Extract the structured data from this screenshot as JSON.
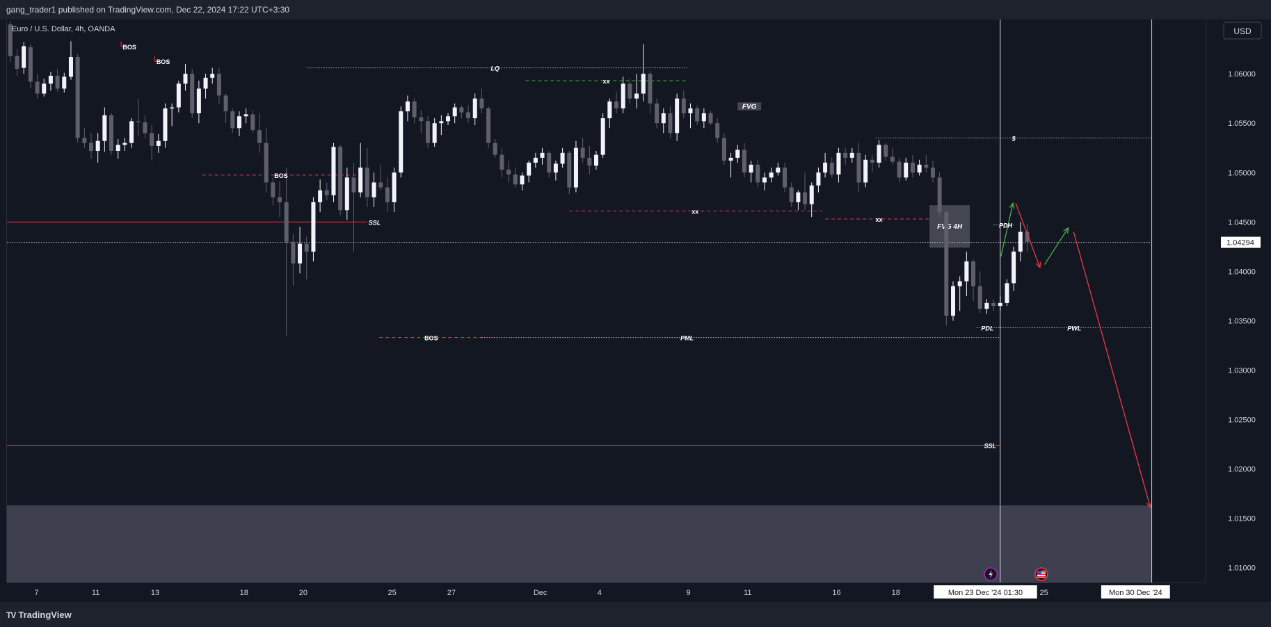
{
  "header": {
    "published_by": "gang_trader1 published on TradingView.com, Dec 22, 2024 17:22 UTC+3:30"
  },
  "footer": {
    "brand": "TradingView",
    "brand_mark": "TV"
  },
  "colors": {
    "background": "#131722",
    "panel": "#1e222d",
    "grid": "#1e2230",
    "candle_up": "#f0f3fa",
    "candle_down": "#5d606b",
    "bear_line": "#f23645",
    "bull_line": "#4caf50",
    "text": "#d1d4dc",
    "dotted": "#b2b5be",
    "zone": "#3e4050"
  },
  "chart_data": {
    "type": "candlestick",
    "symbol_title": "Euro / U.S. Dollar, 4h, OANDA",
    "currency": "USD",
    "last_price": "1.04294",
    "ylim": [
      1.0085,
      1.0655
    ],
    "xlim": [
      0,
      178
    ],
    "y_ticks": [
      "1.06000",
      "1.05500",
      "1.05000",
      "1.04500",
      "1.04000",
      "1.03500",
      "1.03000",
      "1.02500",
      "1.02000",
      "1.01500",
      "1.01000"
    ],
    "x_ticks": [
      {
        "label": "7",
        "x": 4.4
      },
      {
        "label": "11",
        "x": 13.2
      },
      {
        "label": "13",
        "x": 22.0
      },
      {
        "label": "18",
        "x": 35.2
      },
      {
        "label": "20",
        "x": 44.0
      },
      {
        "label": "25",
        "x": 57.2
      },
      {
        "label": "27",
        "x": 66.0
      },
      {
        "label": "Dec",
        "x": 79.2
      },
      {
        "label": "4",
        "x": 88.0
      },
      {
        "label": "9",
        "x": 101.2
      },
      {
        "label": "11",
        "x": 110.0
      },
      {
        "label": "16",
        "x": 123.2
      },
      {
        "label": "18",
        "x": 132.0
      },
      {
        "label": "25",
        "x": 154.0
      }
    ],
    "time_labels": [
      {
        "label": "Mon 23 Dec '24   01:30",
        "x": 145.3
      },
      {
        "label": "Mon 30 Dec '24",
        "x": 167.6
      }
    ],
    "candles": [
      [
        1.065,
        1.0653,
        1.0612,
        1.0618
      ],
      [
        1.0618,
        1.0625,
        1.0598,
        1.0605
      ],
      [
        1.0606,
        1.0632,
        1.06,
        1.0628
      ],
      [
        1.0627,
        1.063,
        1.0585,
        1.0592
      ],
      [
        1.0592,
        1.06,
        1.0575,
        1.058
      ],
      [
        1.058,
        1.0595,
        1.0577,
        1.059
      ],
      [
        1.059,
        1.0602,
        1.0583,
        1.0598
      ],
      [
        1.0598,
        1.0605,
        1.0582,
        1.0585
      ],
      [
        1.0585,
        1.0601,
        1.0581,
        1.0597
      ],
      [
        1.0597,
        1.0633,
        1.0594,
        1.0617
      ],
      [
        1.0617,
        1.062,
        1.053,
        1.0535
      ],
      [
        1.0535,
        1.0545,
        1.0525,
        1.053
      ],
      [
        1.053,
        1.054,
        1.0514,
        1.0522
      ],
      [
        1.0522,
        1.054,
        1.051,
        1.0532
      ],
      [
        1.0532,
        1.0566,
        1.0521,
        1.0558
      ],
      [
        1.0558,
        1.056,
        1.0518,
        1.0522
      ],
      [
        1.0522,
        1.0534,
        1.0514,
        1.0528
      ],
      [
        1.0528,
        1.0535,
        1.0522,
        1.053
      ],
      [
        1.053,
        1.0555,
        1.0525,
        1.0552
      ],
      [
        1.0552,
        1.0575,
        1.0537,
        1.0551
      ],
      [
        1.0551,
        1.0558,
        1.0535,
        1.054
      ],
      [
        1.054,
        1.0548,
        1.0512,
        1.0527
      ],
      [
        1.0527,
        1.0539,
        1.052,
        1.0532
      ],
      [
        1.0532,
        1.057,
        1.0525,
        1.0565
      ],
      [
        1.0565,
        1.057,
        1.0547,
        1.0566
      ],
      [
        1.0566,
        1.0593,
        1.0561,
        1.059
      ],
      [
        1.059,
        1.061,
        1.0583,
        1.06
      ],
      [
        1.06,
        1.0605,
        1.0555,
        1.056
      ],
      [
        1.056,
        1.0593,
        1.055,
        1.0585
      ],
      [
        1.0585,
        1.06,
        1.0575,
        1.0596
      ],
      [
        1.0596,
        1.0606,
        1.059,
        1.06
      ],
      [
        1.06,
        1.0606,
        1.057,
        1.0578
      ],
      [
        1.0578,
        1.058,
        1.055,
        1.0562
      ],
      [
        1.0562,
        1.0565,
        1.054,
        1.0545
      ],
      [
        1.0545,
        1.0562,
        1.0537,
        1.0557
      ],
      [
        1.0557,
        1.0565,
        1.055,
        1.0559
      ],
      [
        1.0559,
        1.0563,
        1.054,
        1.0543
      ],
      [
        1.0543,
        1.056,
        1.052,
        1.053
      ],
      [
        1.053,
        1.0545,
        1.048,
        1.049
      ],
      [
        1.049,
        1.0495,
        1.0467,
        1.0475
      ],
      [
        1.0475,
        1.0491,
        1.0455,
        1.047
      ],
      [
        1.047,
        1.0505,
        1.0335,
        1.043
      ],
      [
        1.043,
        1.0438,
        1.0385,
        1.0408
      ],
      [
        1.0408,
        1.0445,
        1.0398,
        1.0428
      ],
      [
        1.0428,
        1.0435,
        1.0392,
        1.042
      ],
      [
        1.042,
        1.0475,
        1.041,
        1.047
      ],
      [
        1.047,
        1.0493,
        1.046,
        1.0482
      ],
      [
        1.0482,
        1.049,
        1.0472,
        1.0477
      ],
      [
        1.0477,
        1.053,
        1.047,
        1.0526
      ],
      [
        1.0526,
        1.0528,
        1.0457,
        1.0462
      ],
      [
        1.0462,
        1.0505,
        1.0452,
        1.0495
      ],
      [
        1.0495,
        1.051,
        1.042,
        1.048
      ],
      [
        1.048,
        1.053,
        1.0475,
        1.0505
      ],
      [
        1.0505,
        1.0525,
        1.0465,
        1.0475
      ],
      [
        1.0475,
        1.05,
        1.0465,
        1.049
      ],
      [
        1.049,
        1.0508,
        1.0482,
        1.0485
      ],
      [
        1.0485,
        1.0495,
        1.046,
        1.047
      ],
      [
        1.047,
        1.0505,
        1.046,
        1.05
      ],
      [
        1.05,
        1.0567,
        1.0495,
        1.0562
      ],
      [
        1.0562,
        1.0578,
        1.0552,
        1.0572
      ],
      [
        1.0572,
        1.0575,
        1.055,
        1.0556
      ],
      [
        1.0556,
        1.0563,
        1.054,
        1.0552
      ],
      [
        1.0552,
        1.0557,
        1.0525,
        1.053
      ],
      [
        1.053,
        1.0555,
        1.0526,
        1.055
      ],
      [
        1.055,
        1.0558,
        1.0538,
        1.0552
      ],
      [
        1.0552,
        1.056,
        1.0548,
        1.0557
      ],
      [
        1.0557,
        1.057,
        1.055,
        1.0566
      ],
      [
        1.0566,
        1.0568,
        1.0555,
        1.0561
      ],
      [
        1.0561,
        1.0568,
        1.055,
        1.0555
      ],
      [
        1.0555,
        1.058,
        1.0548,
        1.0575
      ],
      [
        1.0575,
        1.0585,
        1.056,
        1.0565
      ],
      [
        1.0565,
        1.0567,
        1.0525,
        1.053
      ],
      [
        1.053,
        1.0534,
        1.0515,
        1.0518
      ],
      [
        1.0518,
        1.0525,
        1.0495,
        1.0503
      ],
      [
        1.0503,
        1.0512,
        1.049,
        1.0498
      ],
      [
        1.0498,
        1.0505,
        1.0485,
        1.0488
      ],
      [
        1.0488,
        1.05,
        1.0482,
        1.0497
      ],
      [
        1.0497,
        1.0512,
        1.049,
        1.051
      ],
      [
        1.051,
        1.052,
        1.0505,
        1.0515
      ],
      [
        1.0515,
        1.0525,
        1.0508,
        1.052
      ],
      [
        1.052,
        1.0522,
        1.0495,
        1.05
      ],
      [
        1.05,
        1.0512,
        1.0492,
        1.0509
      ],
      [
        1.0509,
        1.0525,
        1.0505,
        1.052
      ],
      [
        1.052,
        1.0522,
        1.0478,
        1.0485
      ],
      [
        1.0485,
        1.0532,
        1.048,
        1.0525
      ],
      [
        1.0525,
        1.0535,
        1.051,
        1.0515
      ],
      [
        1.0515,
        1.0527,
        1.0498,
        1.0507
      ],
      [
        1.0507,
        1.0522,
        1.0503,
        1.0518
      ],
      [
        1.0518,
        1.056,
        1.0515,
        1.0555
      ],
      [
        1.0555,
        1.0575,
        1.0545,
        1.0572
      ],
      [
        1.0572,
        1.0582,
        1.056,
        1.0565
      ],
      [
        1.0565,
        1.0597,
        1.056,
        1.059
      ],
      [
        1.059,
        1.0595,
        1.057,
        1.0575
      ],
      [
        1.0575,
        1.06,
        1.0565,
        1.058
      ],
      [
        1.058,
        1.063,
        1.0572,
        1.06
      ],
      [
        1.06,
        1.0603,
        1.056,
        1.057
      ],
      [
        1.057,
        1.0575,
        1.0545,
        1.055
      ],
      [
        1.055,
        1.0565,
        1.054,
        1.056
      ],
      [
        1.056,
        1.0567,
        1.0535,
        1.054
      ],
      [
        1.054,
        1.058,
        1.0532,
        1.0575
      ],
      [
        1.0575,
        1.0583,
        1.0555,
        1.056
      ],
      [
        1.056,
        1.057,
        1.0545,
        1.0565
      ],
      [
        1.0565,
        1.0568,
        1.0548,
        1.0552
      ],
      [
        1.0552,
        1.0565,
        1.0545,
        1.056
      ],
      [
        1.056,
        1.0562,
        1.0548,
        1.055
      ],
      [
        1.055,
        1.0555,
        1.053,
        1.0535
      ],
      [
        1.0535,
        1.054,
        1.0508,
        1.0512
      ],
      [
        1.0512,
        1.052,
        1.0495,
        1.0515
      ],
      [
        1.0515,
        1.0528,
        1.051,
        1.0523
      ],
      [
        1.0523,
        1.053,
        1.0495,
        1.05
      ],
      [
        1.05,
        1.0512,
        1.049,
        1.0508
      ],
      [
        1.0508,
        1.0513,
        1.0485,
        1.049
      ],
      [
        1.049,
        1.05,
        1.0482,
        1.0495
      ],
      [
        1.0495,
        1.0505,
        1.049,
        1.05
      ],
      [
        1.05,
        1.051,
        1.0497,
        1.0505
      ],
      [
        1.0505,
        1.051,
        1.048,
        1.0485
      ],
      [
        1.0485,
        1.049,
        1.0465,
        1.047
      ],
      [
        1.047,
        1.0482,
        1.0462,
        1.048
      ],
      [
        1.048,
        1.05,
        1.0462,
        1.0468
      ],
      [
        1.0468,
        1.049,
        1.0455,
        1.0487
      ],
      [
        1.0487,
        1.0505,
        1.048,
        1.05
      ],
      [
        1.05,
        1.052,
        1.0495,
        1.051
      ],
      [
        1.051,
        1.0515,
        1.0495,
        1.0498
      ],
      [
        1.0498,
        1.0525,
        1.049,
        1.052
      ],
      [
        1.052,
        1.0525,
        1.0508,
        1.0515
      ],
      [
        1.0515,
        1.0525,
        1.051,
        1.052
      ],
      [
        1.052,
        1.053,
        1.048,
        1.049
      ],
      [
        1.049,
        1.0518,
        1.0485,
        1.0513
      ],
      [
        1.0513,
        1.0518,
        1.05,
        1.051
      ],
      [
        1.051,
        1.0533,
        1.0505,
        1.0528
      ],
      [
        1.0528,
        1.053,
        1.0512,
        1.0516
      ],
      [
        1.0516,
        1.0525,
        1.0508,
        1.0511
      ],
      [
        1.0511,
        1.0515,
        1.049,
        1.0495
      ],
      [
        1.0495,
        1.0515,
        1.0492,
        1.051
      ],
      [
        1.051,
        1.0518,
        1.0495,
        1.05
      ],
      [
        1.05,
        1.0513,
        1.0497,
        1.0508
      ],
      [
        1.0508,
        1.0518,
        1.05,
        1.0505
      ],
      [
        1.0505,
        1.0512,
        1.049,
        1.0495
      ],
      [
        1.0495,
        1.05,
        1.0455,
        1.046
      ],
      [
        1.046,
        1.0462,
        1.0345,
        1.0355
      ],
      [
        1.0355,
        1.039,
        1.035,
        1.0385
      ],
      [
        1.0385,
        1.0395,
        1.036,
        1.039
      ],
      [
        1.039,
        1.042,
        1.0375,
        1.041
      ],
      [
        1.041,
        1.0412,
        1.037,
        1.0385
      ],
      [
        1.0385,
        1.04,
        1.0358,
        1.0362
      ],
      [
        1.0362,
        1.0372,
        1.0357,
        1.0368
      ],
      [
        1.0368,
        1.0372,
        1.036,
        1.0365
      ],
      [
        1.0365,
        1.0375,
        1.036,
        1.0368
      ],
      [
        1.0368,
        1.0392,
        1.0365,
        1.0388
      ],
      [
        1.0388,
        1.0425,
        1.038,
        1.042
      ],
      [
        1.042,
        1.045,
        1.041,
        1.044
      ],
      [
        1.044,
        1.0448,
        1.042,
        1.043
      ]
    ],
    "levels": [
      {
        "label": "LQ",
        "y": 1.0606,
        "x0": 44.5,
        "x1": 101.0,
        "style": "dotted",
        "color": "#b2b5be",
        "label_x": 72.5
      },
      {
        "label": "xx",
        "y": 1.0593,
        "x0": 77.0,
        "x1": 101.0,
        "style": "dashed",
        "color": "#4caf50",
        "label_x": 89.0
      },
      {
        "label": "BOS",
        "y": 1.04975,
        "x0": 29.0,
        "x1": 52.5,
        "style": "dashed",
        "color": "#f23645",
        "label_x": 40.7
      },
      {
        "label": "xx",
        "y": 1.0461,
        "x0": 83.5,
        "x1": 121.0,
        "style": "dashed",
        "color": "#f23645",
        "label_x": 102.2
      },
      {
        "label": "xx",
        "y": 1.0453,
        "x0": 121.5,
        "x1": 137.0,
        "style": "dashed",
        "color": "#f23645",
        "label_x": 129.5
      },
      {
        "label": "$",
        "y": 1.0535,
        "x0": 129.0,
        "x1": 170.0,
        "style": "dotted",
        "color": "#b2b5be",
        "label_x": 149.5
      },
      {
        "label": "SSL",
        "y": 1.045,
        "x0": 0.0,
        "x1": 53.5,
        "style": "solid",
        "color": "#f23645",
        "label_x": 54.6
      },
      {
        "label": "BOS",
        "y": 1.0333,
        "x0": 55.3,
        "x1": 70.5,
        "style": "dashed",
        "color": "#f23645",
        "label_x": 63.0
      },
      {
        "label": "PML",
        "y": 1.0333,
        "x0": 70.5,
        "x1": 147.5,
        "style": "dotted",
        "color": "#b2b5be",
        "label_x": 101.0
      },
      {
        "label": "PDH",
        "y": 1.0447,
        "x0": 146.5,
        "x1": 149.5,
        "style": "dotted",
        "color": "#b2b5be",
        "label_x": 148.3
      },
      {
        "label": "PDL",
        "y": 1.0343,
        "x0": 144.0,
        "x1": 147.5,
        "style": "dotted",
        "color": "#b2b5be",
        "label_x": 145.6
      },
      {
        "label": "PWL",
        "y": 1.0343,
        "x0": 147.5,
        "x1": 170.0,
        "style": "dotted",
        "color": "#b2b5be",
        "label_x": 158.5
      },
      {
        "label": "SSL",
        "y": 1.0224,
        "x0": 0.0,
        "x1": 147.5,
        "style": "solid",
        "color": "#f23645",
        "label_x": 146.0
      },
      {
        "label": "",
        "y": 1.04294,
        "x0": 0.0,
        "x1": 170.0,
        "style": "dotted",
        "color": "#d1d4dc",
        "label_x": 0
      }
    ],
    "bos_markers": [
      {
        "label": "BOS",
        "x": 18.2,
        "y": 1.0627
      },
      {
        "label": "BOS",
        "x": 23.2,
        "y": 1.0612
      }
    ],
    "zones": [
      {
        "label": "FVG 4H",
        "x0": 137.0,
        "x1": 143.0,
        "y_top": 1.0467,
        "y_bottom": 1.0424,
        "color": "#4a4c56"
      },
      {
        "label": "FVG",
        "x0": 108.5,
        "x1": 112.0,
        "y_top": 1.0571,
        "y_bottom": 1.0563,
        "color": "#4a4c56"
      },
      {
        "label": "",
        "x0": 0.0,
        "x1": 170.0,
        "y_top": 1.0163,
        "y_bottom": 1.0085,
        "color": "#3e4050"
      }
    ],
    "forecast_path": [
      {
        "from": [
          147.6,
          1.0415
        ],
        "to": [
          149.4,
          1.0469
        ],
        "color": "#4caf50"
      },
      {
        "from": [
          149.8,
          1.0469
        ],
        "to": [
          153.4,
          1.0404
        ],
        "color": "#f23645"
      },
      {
        "from": [
          154.1,
          1.0407
        ],
        "to": [
          157.6,
          1.0444
        ],
        "color": "#4caf50"
      },
      {
        "from": [
          158.4,
          1.044
        ],
        "to": [
          169.8,
          1.0161
        ],
        "color": "#f23645"
      }
    ],
    "vertical_lines": [
      {
        "x": 147.5,
        "color": "#d1d4dc"
      },
      {
        "x": 170.0,
        "color": "#d1d4dc"
      }
    ],
    "event_icons": [
      {
        "x": 146.1,
        "kind": "flash-icon",
        "color": "#9c27b0"
      },
      {
        "x": 153.6,
        "kind": "us-flag-icon",
        "color": "#f23645"
      }
    ]
  }
}
